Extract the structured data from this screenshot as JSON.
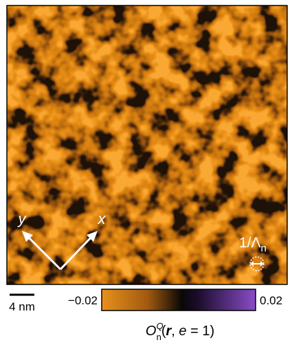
{
  "map": {
    "axis_x": "x",
    "axis_y": "y",
    "wavelength_label": {
      "main": "1/Λ",
      "sub": "n"
    },
    "scale_bar": "4 nm",
    "colorbar": {
      "min_label": "−0.02",
      "max_label": "0.02",
      "title": {
        "symbol": "O",
        "sup": "Q",
        "sub": "n",
        "open": "(",
        "r": "r",
        "comma": ", ",
        "e": "e",
        "close": " = 1)"
      }
    }
  }
}
